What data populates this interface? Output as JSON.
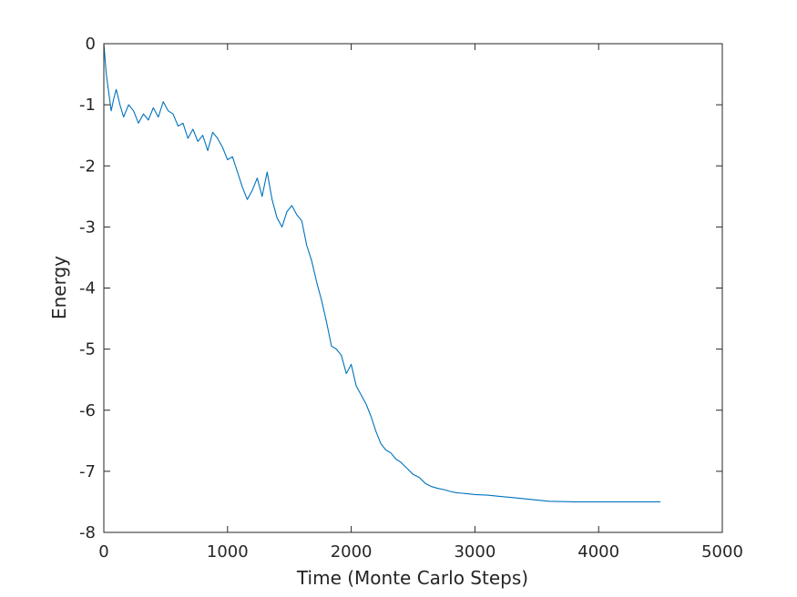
{
  "chart_data": {
    "type": "line",
    "title": "",
    "xlabel": "Time (Monte Carlo Steps)",
    "ylabel": "Energy",
    "xlim": [
      0,
      5000
    ],
    "ylim": [
      -8,
      0
    ],
    "xticks": [
      0,
      1000,
      2000,
      3000,
      4000,
      5000
    ],
    "yticks": [
      0,
      -1,
      -2,
      -3,
      -4,
      -5,
      -6,
      -7,
      -8
    ],
    "xtick_labels": [
      "0",
      "1000",
      "2000",
      "3000",
      "4000",
      "5000"
    ],
    "ytick_labels": [
      "0",
      "-1",
      "-2",
      "-3",
      "-4",
      "-5",
      "-6",
      "-7",
      "-8"
    ],
    "grid": false,
    "legend": "none",
    "series_color": "#0072BD",
    "series": [
      {
        "x": [
          0,
          20,
          40,
          60,
          80,
          100,
          130,
          160,
          200,
          240,
          280,
          320,
          360,
          400,
          440,
          480,
          520,
          560,
          600,
          640,
          680,
          720,
          760,
          800,
          840,
          880,
          920,
          960,
          1000,
          1040,
          1080,
          1120,
          1160,
          1200,
          1240,
          1280,
          1320,
          1360,
          1400,
          1440,
          1480,
          1520,
          1560,
          1600,
          1640,
          1680,
          1720,
          1760,
          1800,
          1840,
          1880,
          1920,
          1960,
          2000,
          2040,
          2080,
          2120,
          2160,
          2200,
          2240,
          2280,
          2320,
          2360,
          2400,
          2450,
          2500,
          2550,
          2600,
          2650,
          2700,
          2750,
          2800,
          2850,
          2900,
          2950,
          3000,
          3100,
          3200,
          3300,
          3400,
          3500,
          3600,
          3800,
          4000,
          4200,
          4500
        ],
        "y": [
          0,
          -0.5,
          -0.8,
          -1.1,
          -0.9,
          -0.75,
          -1.0,
          -1.2,
          -1.0,
          -1.1,
          -1.3,
          -1.15,
          -1.25,
          -1.05,
          -1.2,
          -0.95,
          -1.1,
          -1.15,
          -1.35,
          -1.3,
          -1.55,
          -1.4,
          -1.6,
          -1.5,
          -1.75,
          -1.45,
          -1.55,
          -1.7,
          -1.9,
          -1.85,
          -2.1,
          -2.35,
          -2.55,
          -2.4,
          -2.2,
          -2.5,
          -2.1,
          -2.55,
          -2.85,
          -3.0,
          -2.75,
          -2.65,
          -2.8,
          -2.9,
          -3.3,
          -3.55,
          -3.9,
          -4.2,
          -4.55,
          -4.95,
          -5.0,
          -5.1,
          -5.4,
          -5.25,
          -5.6,
          -5.75,
          -5.9,
          -6.1,
          -6.35,
          -6.55,
          -6.65,
          -6.7,
          -6.8,
          -6.85,
          -6.95,
          -7.05,
          -7.1,
          -7.2,
          -7.25,
          -7.28,
          -7.3,
          -7.33,
          -7.35,
          -7.36,
          -7.37,
          -7.38,
          -7.39,
          -7.41,
          -7.43,
          -7.45,
          -7.47,
          -7.49,
          -7.5,
          -7.5,
          -7.5,
          -7.5
        ]
      }
    ]
  }
}
